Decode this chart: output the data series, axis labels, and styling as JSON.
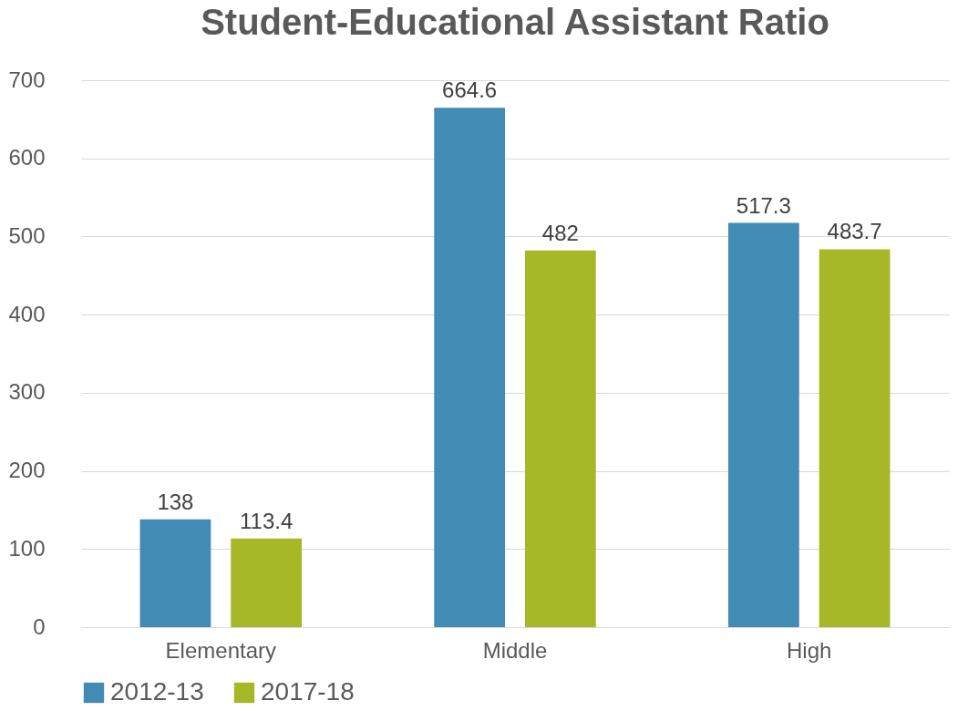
{
  "chart_data": {
    "type": "bar",
    "title": "Student-Educational Assistant Ratio",
    "categories": [
      "Elementary",
      "Middle",
      "High"
    ],
    "series": [
      {
        "name": "2012-13",
        "color": "#428bb5",
        "values": [
          138,
          664.6,
          517.3
        ]
      },
      {
        "name": "2017-18",
        "color": "#a6b828",
        "values": [
          113.4,
          482,
          483.7
        ]
      }
    ],
    "ylim": [
      0,
      700
    ],
    "yticks": [
      0,
      100,
      200,
      300,
      400,
      500,
      600,
      700
    ],
    "grid": "y",
    "legend": "bottom",
    "data_labels": true
  }
}
